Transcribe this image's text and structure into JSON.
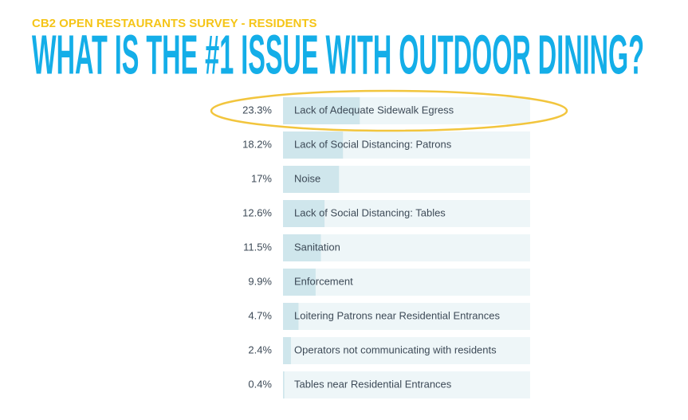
{
  "chart_data": {
    "type": "bar",
    "orientation": "horizontal",
    "subtitle": "CB2 OPEN RESTAURANTS SURVEY - RESIDENTS",
    "title": "WHAT IS THE #1 ISSUE WITH OUTDOOR DINING?",
    "categories": [
      "Lack of Adequate Sidewalk Egress",
      "Lack of Social Distancing: Patrons",
      "Noise",
      "Lack of Social Distancing: Tables",
      "Sanitation",
      "Enforcement",
      "Loitering Patrons near Residential Entrances",
      "Operators not communicating with residents",
      "Tables near Residential Entrances"
    ],
    "values": [
      23.3,
      18.2,
      17,
      12.6,
      11.5,
      9.9,
      4.7,
      2.4,
      0.4
    ],
    "value_labels": [
      "23.3%",
      "18.2%",
      "17%",
      "12.6%",
      "11.5%",
      "9.9%",
      "4.7%",
      "2.4%",
      "0.4%"
    ],
    "xlim": [
      0,
      75
    ],
    "color": "#cfe6ec",
    "track_color": "#eef6f8"
  }
}
